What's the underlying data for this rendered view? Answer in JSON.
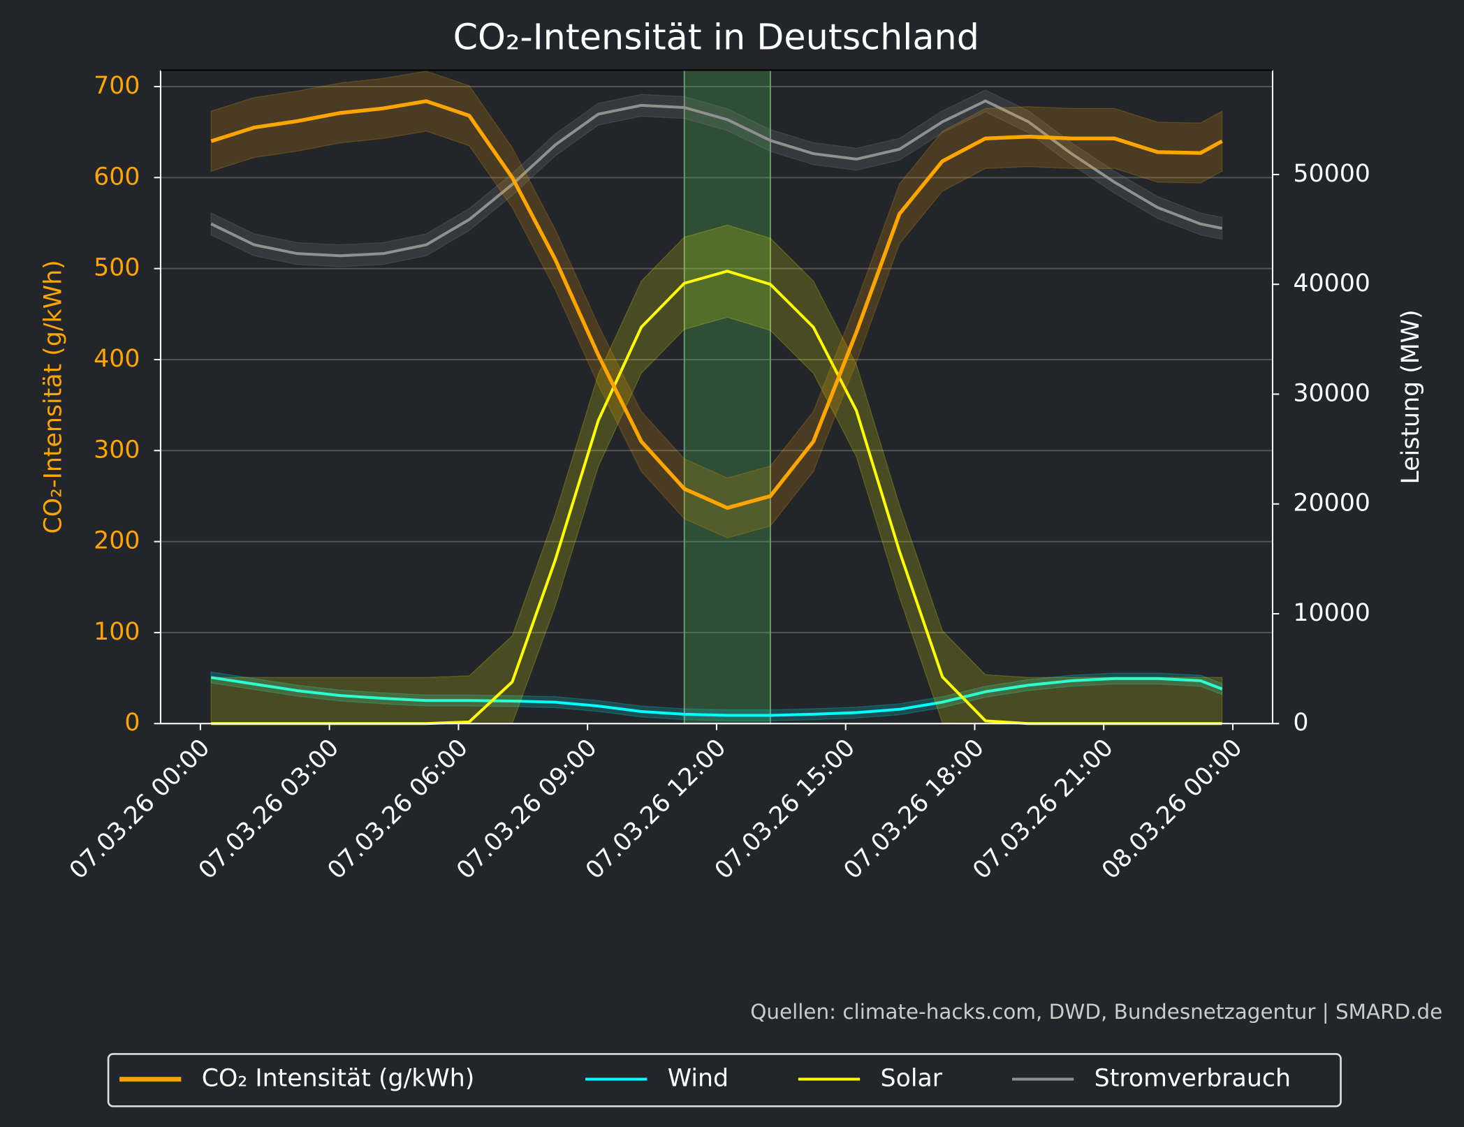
{
  "chart_data": {
    "type": "line",
    "title": "CO₂-Intensität in Deutschland",
    "ylabel": "CO₂-Intensität (g/kWh)",
    "y2label": "Leistung (MW)",
    "source": "Quellen: climate-hacks.com, DWD, Bundesnetzagentur | SMARD.de",
    "x": [
      "07.03.26 00:15",
      "07.03.26 01:15",
      "07.03.26 02:15",
      "07.03.26 03:15",
      "07.03.26 04:15",
      "07.03.26 05:15",
      "07.03.26 06:15",
      "07.03.26 07:15",
      "07.03.26 08:15",
      "07.03.26 09:15",
      "07.03.26 10:15",
      "07.03.26 11:15",
      "07.03.26 12:15",
      "07.03.26 13:15",
      "07.03.26 14:15",
      "07.03.26 15:15",
      "07.03.26 16:15",
      "07.03.26 17:15",
      "07.03.26 18:15",
      "07.03.26 19:15",
      "07.03.26 20:15",
      "07.03.26 21:15",
      "07.03.26 22:15",
      "07.03.26 23:15",
      "07.03.26 23:45"
    ],
    "series": [
      {
        "name": "CO₂ Intensität (g/kWh)",
        "color": "#ffa500",
        "axis": "y",
        "band": 33,
        "values": [
          640,
          655,
          662,
          671,
          676,
          684,
          668,
          600,
          510,
          405,
          310,
          258,
          237,
          250,
          310,
          430,
          560,
          618,
          643,
          645,
          643,
          643,
          628,
          627,
          640
        ]
      },
      {
        "name": "Wind",
        "color": "#00ffff",
        "axis": "y2",
        "band": 500,
        "values": [
          4200,
          3600,
          3000,
          2550,
          2300,
          2100,
          2100,
          2050,
          1950,
          1600,
          1100,
          850,
          750,
          750,
          850,
          1000,
          1300,
          1950,
          2900,
          3500,
          3900,
          4100,
          4100,
          3900,
          3150
        ]
      },
      {
        "name": "Solar",
        "color": "#ffff00",
        "axis": "y2",
        "band": 4200,
        "values": [
          0,
          0,
          0,
          0,
          0,
          0,
          150,
          3800,
          14900,
          27600,
          36100,
          40100,
          41200,
          40000,
          36100,
          28500,
          15700,
          4250,
          250,
          0,
          0,
          0,
          0,
          0,
          0
        ]
      },
      {
        "name": "Stromverbrauch",
        "color": "#909090",
        "axis": "y2",
        "band": 1000,
        "values": [
          45500,
          43600,
          42800,
          42600,
          42800,
          43600,
          45900,
          49100,
          52700,
          55500,
          56300,
          56100,
          55000,
          53100,
          51900,
          51400,
          52300,
          54800,
          56700,
          54800,
          51900,
          49300,
          47000,
          45500,
          45100
        ]
      }
    ],
    "highlight": [
      "07.03.26 11:15",
      "07.03.26 13:15"
    ],
    "xticks": [
      "07.03.26 00:00",
      "07.03.26 03:00",
      "07.03.26 06:00",
      "07.03.26 09:00",
      "07.03.26 12:00",
      "07.03.26 15:00",
      "07.03.26 18:00",
      "07.03.26 21:00",
      "08.03.26 00:00"
    ],
    "ylim": [
      0,
      718
    ],
    "yticks": [
      0,
      100,
      200,
      300,
      400,
      500,
      600,
      700
    ],
    "y2lim": [
      0,
      59500
    ],
    "y2ticks": [
      0,
      10000,
      20000,
      30000,
      40000,
      50000
    ],
    "grid": true,
    "legend": "bottom"
  }
}
